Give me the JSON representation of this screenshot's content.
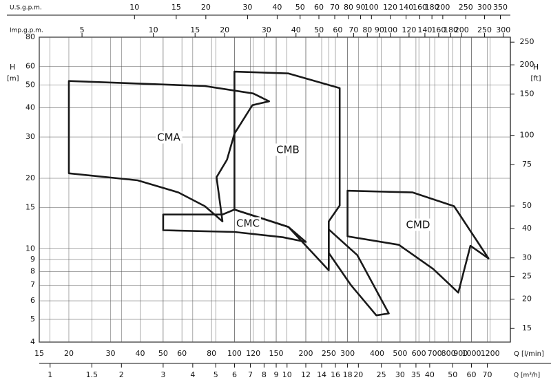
{
  "chart_data": {
    "type": "region",
    "log_scale": true,
    "grid": true,
    "x_label": "Q [l/min]",
    "y_label": "H",
    "y_unit": "[m]",
    "y2_label": "H",
    "y2_unit": "[ft]",
    "xlim": [
      15,
      1460
    ],
    "xticks": [
      15,
      20,
      30,
      40,
      50,
      60,
      80,
      100,
      120,
      150,
      200,
      250,
      300,
      400,
      500,
      600,
      700,
      800,
      900,
      1000,
      1200
    ],
    "ylim": [
      4,
      80
    ],
    "yticks": [
      4,
      5,
      6,
      7,
      8,
      9,
      10,
      15,
      20,
      30,
      40,
      50,
      60,
      80
    ],
    "y2lim": [
      13.12,
      262.5
    ],
    "y2ticks": [
      15,
      20,
      25,
      30,
      40,
      50,
      75,
      100,
      150,
      200,
      250
    ],
    "secondary_x_axes": [
      {
        "label": "Q [m³/h]",
        "position": "bottom",
        "lim": [
          0.9,
          87.6
        ],
        "ticks": [
          1,
          1.5,
          2,
          3,
          4,
          5,
          6,
          7,
          8,
          9,
          10,
          12,
          14,
          16,
          18,
          20,
          25,
          30,
          35,
          40,
          50,
          60,
          70
        ]
      },
      {
        "label": "U.S.g.p.m.",
        "position": "top",
        "lim": [
          3.963,
          385.7
        ],
        "ticks": [
          10,
          15,
          20,
          30,
          40,
          50,
          60,
          70,
          80,
          90,
          100,
          120,
          140,
          160,
          180,
          200,
          250,
          300,
          350
        ]
      },
      {
        "label": "Imp.g.p.m.",
        "position": "top-inner",
        "lim": [
          3.3,
          321.2
        ],
        "ticks": [
          5,
          10,
          15,
          20,
          30,
          40,
          50,
          60,
          70,
          80,
          90,
          100,
          120,
          140,
          160,
          180,
          200,
          250,
          300
        ]
      }
    ],
    "series": [
      {
        "name": "CMA",
        "color": "#1a1a1a",
        "x": [
          20,
          75,
          120,
          140,
          119,
          100,
          93,
          84,
          89,
          75,
          58,
          39,
          20
        ],
        "values": [
          52,
          49.5,
          46,
          42.6,
          41,
          31,
          24,
          20.2,
          13.1,
          15.2,
          17.4,
          19.6,
          21
        ]
      },
      {
        "name": "CMB",
        "color": "#1a1a1a",
        "x": [
          100,
          169,
          278,
          278,
          250,
          250,
          169,
          100
        ],
        "values": [
          57,
          56,
          48.5,
          15.3,
          13.1,
          8.1,
          12.4,
          14.7
        ]
      },
      {
        "name": "CMC",
        "color": "#1a1a1a",
        "x": [
          50,
          89,
          100,
          169,
          200,
          160,
          100,
          50
        ],
        "values": [
          14,
          14,
          14.7,
          12.4,
          10.7,
          11.2,
          11.8,
          12
        ]
      },
      {
        "name": "CMD",
        "color": "#1a1a1a",
        "x": [
          300,
          565,
          845,
          1180,
          990,
          880,
          690,
          494,
          300
        ],
        "values": [
          17.7,
          17.4,
          15.2,
          9.1,
          10.3,
          6.5,
          8.2,
          10.4,
          11.3
        ]
      },
      {
        "color": "#1a1a1a",
        "x": [
          250,
          330,
          448,
          397,
          310,
          250
        ],
        "values": [
          12.1,
          9.4,
          5.3,
          5.2,
          7,
          9.6
        ]
      }
    ]
  }
}
